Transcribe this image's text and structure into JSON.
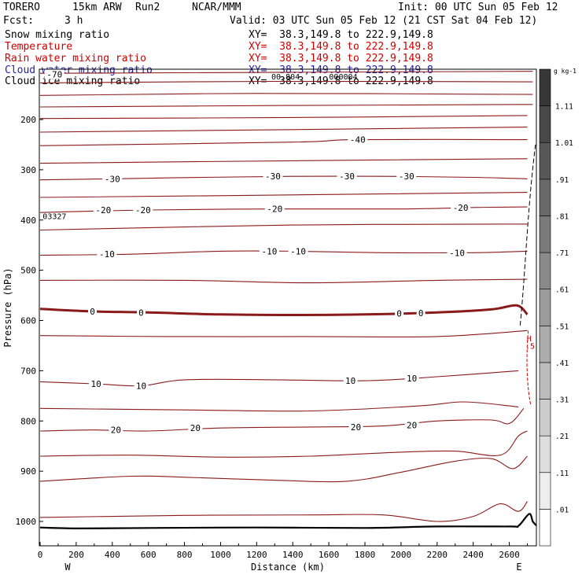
{
  "header": {
    "model": "TORERO",
    "grid": "15km ARW",
    "run": "Run2",
    "org": "NCAR/MMM",
    "init": "Init: 00 UTC Sun 05 Feb 12",
    "fcst_label": "Fcst:",
    "fcst_value": "3 h",
    "valid": "Valid: 03 UTC Sun 05 Feb 12 (21 CST Sat 04 Feb 12)"
  },
  "fields": [
    {
      "name": "Snow mixing ratio",
      "xy": "XY=  38.3,149.8 to 222.9,149.8",
      "color": "#000000"
    },
    {
      "name": "Temperature",
      "xy": "XY=  38.3,149.8 to 222.9,149.8",
      "color": "#cc0000"
    },
    {
      "name": "Rain water mixing ratio",
      "xy": "XY=  38.3,149.8 to 222.9,149.8",
      "color": "#cc0000"
    },
    {
      "name": "Cloud water mixing ratio",
      "xy": "XY=  38.3,149.8 to 222.9,149.8",
      "color": "#2222aa"
    },
    {
      "name": "Cloud ice mixing ratio",
      "xy": "XY=  38.3,149.8 to 222.9,149.8",
      "color": "#000000"
    }
  ],
  "chart_data": {
    "type": "contour-cross-section",
    "xlabel": "Distance (km)",
    "ylabel": "Pressure (hPa)",
    "xlim": [
      0,
      2750
    ],
    "ylim": [
      1050,
      100
    ],
    "x_ticks": [
      "0",
      "200",
      "400",
      "600",
      "800",
      "1000",
      "1200",
      "1400",
      "1600",
      "1800",
      "2000",
      "2200",
      "2400",
      "2600"
    ],
    "y_ticks": [
      "200",
      "300",
      "400",
      "500",
      "600",
      "700",
      "800",
      "900",
      "1000"
    ],
    "x_end_labels": {
      "west": "W",
      "east": "E"
    },
    "temperature_contours": [
      {
        "id": "t-70",
        "label": "-70",
        "pts": [
          [
            0,
            108
          ],
          [
            2730,
            104
          ]
        ]
      },
      {
        "id": "t-65",
        "label": "",
        "pts": [
          [
            0,
            127
          ],
          [
            1300,
            124
          ],
          [
            2730,
            125
          ]
        ]
      },
      {
        "id": "t-60",
        "label": "",
        "pts": [
          [
            0,
            152
          ],
          [
            1200,
            148
          ],
          [
            2730,
            150
          ]
        ]
      },
      {
        "id": "t-55",
        "label": "",
        "pts": [
          [
            0,
            175
          ],
          [
            1400,
            172
          ],
          [
            2730,
            170
          ]
        ]
      },
      {
        "id": "t-50",
        "label": "",
        "pts": [
          [
            0,
            198
          ],
          [
            1400,
            196
          ],
          [
            2700,
            192
          ]
        ]
      },
      {
        "id": "t-45",
        "label": "",
        "pts": [
          [
            0,
            225
          ],
          [
            1400,
            220
          ],
          [
            2700,
            215
          ]
        ]
      },
      {
        "id": "t-40",
        "label": "-40",
        "pts": [
          [
            0,
            252
          ],
          [
            1400,
            245
          ],
          [
            1750,
            240
          ],
          [
            2700,
            240
          ]
        ]
      },
      {
        "id": "t-35",
        "label": "",
        "pts": [
          [
            0,
            287
          ],
          [
            1400,
            282
          ],
          [
            2700,
            278
          ]
        ]
      },
      {
        "id": "t-30",
        "label": "-30",
        "pts": [
          [
            0,
            320
          ],
          [
            400,
            318
          ],
          [
            900,
            315
          ],
          [
            1400,
            313
          ],
          [
            1900,
            313
          ],
          [
            2400,
            315
          ],
          [
            2700,
            318
          ]
        ]
      },
      {
        "id": "t-25",
        "label": "",
        "pts": [
          [
            0,
            355
          ],
          [
            1400,
            350
          ],
          [
            2700,
            345
          ]
        ]
      },
      {
        "id": "t-20",
        "label": "-20",
        "pts": [
          [
            0,
            385
          ],
          [
            600,
            380
          ],
          [
            1300,
            378
          ],
          [
            2000,
            378
          ],
          [
            2400,
            375
          ],
          [
            2700,
            374
          ]
        ]
      },
      {
        "id": "t-15",
        "label": "",
        "pts": [
          [
            0,
            420
          ],
          [
            1400,
            410
          ],
          [
            2700,
            408
          ]
        ]
      },
      {
        "id": "t-10",
        "label": "-10",
        "pts": [
          [
            0,
            470
          ],
          [
            500,
            468
          ],
          [
            1000,
            462
          ],
          [
            1400,
            462
          ],
          [
            1900,
            465
          ],
          [
            2400,
            465
          ],
          [
            2700,
            462
          ]
        ]
      },
      {
        "id": "t-5",
        "label": "",
        "pts": [
          [
            0,
            520
          ],
          [
            800,
            520
          ],
          [
            1500,
            525
          ],
          [
            2200,
            520
          ],
          [
            2700,
            518
          ]
        ]
      },
      {
        "id": "t0",
        "label": "0",
        "pts": [
          [
            0,
            577
          ],
          [
            300,
            582
          ],
          [
            600,
            584
          ],
          [
            1000,
            588
          ],
          [
            1400,
            589
          ],
          [
            1800,
            588
          ],
          [
            2200,
            584
          ],
          [
            2500,
            578
          ],
          [
            2640,
            570
          ],
          [
            2700,
            588
          ]
        ]
      },
      {
        "id": "t5",
        "label": "",
        "pts": [
          [
            0,
            630
          ],
          [
            700,
            632
          ],
          [
            1500,
            632
          ],
          [
            2200,
            632
          ],
          [
            2700,
            620
          ]
        ]
      },
      {
        "id": "t10",
        "label": "10",
        "pts": [
          [
            0,
            722
          ],
          [
            300,
            726
          ],
          [
            560,
            730
          ],
          [
            800,
            718
          ],
          [
            1300,
            718
          ],
          [
            1800,
            720
          ],
          [
            2200,
            712
          ],
          [
            2650,
            700
          ]
        ]
      },
      {
        "id": "t15",
        "label": "",
        "pts": [
          [
            0,
            775
          ],
          [
            800,
            778
          ],
          [
            1500,
            780
          ],
          [
            2100,
            770
          ],
          [
            2350,
            762
          ],
          [
            2650,
            772
          ]
        ]
      },
      {
        "id": "t20",
        "label": "20",
        "pts": [
          [
            0,
            820
          ],
          [
            300,
            818
          ],
          [
            600,
            820
          ],
          [
            1000,
            814
          ],
          [
            1500,
            812
          ],
          [
            1900,
            810
          ],
          [
            2200,
            800
          ],
          [
            2500,
            798
          ],
          [
            2600,
            805
          ],
          [
            2680,
            775
          ]
        ]
      },
      {
        "id": "t25",
        "label": "",
        "pts": [
          [
            0,
            870
          ],
          [
            500,
            868
          ],
          [
            1000,
            872
          ],
          [
            1500,
            870
          ],
          [
            2000,
            862
          ],
          [
            2300,
            860
          ],
          [
            2550,
            868
          ],
          [
            2650,
            830
          ],
          [
            2700,
            820
          ]
        ]
      },
      {
        "id": "t30",
        "label": "",
        "pts": [
          [
            0,
            920
          ],
          [
            500,
            910
          ],
          [
            800,
            912
          ],
          [
            1300,
            918
          ],
          [
            1700,
            920
          ],
          [
            2000,
            902
          ],
          [
            2300,
            880
          ],
          [
            2500,
            875
          ],
          [
            2620,
            895
          ],
          [
            2700,
            870
          ]
        ]
      },
      {
        "id": "t35",
        "label": "",
        "pts": [
          [
            0,
            992
          ],
          [
            800,
            988
          ],
          [
            1500,
            987
          ],
          [
            1900,
            987
          ],
          [
            2200,
            1000
          ],
          [
            2400,
            990
          ],
          [
            2550,
            965
          ],
          [
            2650,
            980
          ],
          [
            2700,
            960
          ]
        ]
      }
    ],
    "contour_labels": [
      {
        "text": "-70",
        "x": 80,
        "p": 110
      },
      {
        "text": "-40",
        "x": 1760,
        "p": 240
      },
      {
        "text": "-30",
        "x": 400,
        "p": 318
      },
      {
        "text": "-30",
        "x": 1290,
        "p": 313
      },
      {
        "text": "-30",
        "x": 1700,
        "p": 313
      },
      {
        "text": "-30",
        "x": 2030,
        "p": 313
      },
      {
        "text": "-20",
        "x": 350,
        "p": 380
      },
      {
        "text": "-20",
        "x": 570,
        "p": 380
      },
      {
        "text": "-20",
        "x": 1300,
        "p": 378
      },
      {
        "text": "-20",
        "x": 2330,
        "p": 375
      },
      {
        "text": "-10",
        "x": 370,
        "p": 468
      },
      {
        "text": "-10",
        "x": 1270,
        "p": 462
      },
      {
        "text": "-10",
        "x": 1430,
        "p": 462
      },
      {
        "text": "-10",
        "x": 2310,
        "p": 465
      },
      {
        "text": "0",
        "x": 290,
        "p": 582
      },
      {
        "text": "0",
        "x": 560,
        "p": 584
      },
      {
        "text": "0",
        "x": 1990,
        "p": 586
      },
      {
        "text": "0",
        "x": 2110,
        "p": 585
      },
      {
        "text": "10",
        "x": 310,
        "p": 726
      },
      {
        "text": "10",
        "x": 560,
        "p": 730
      },
      {
        "text": "10",
        "x": 1720,
        "p": 720
      },
      {
        "text": "10",
        "x": 2060,
        "p": 715
      },
      {
        "text": "20",
        "x": 420,
        "p": 818
      },
      {
        "text": "20",
        "x": 860,
        "p": 814
      },
      {
        "text": "20",
        "x": 1750,
        "p": 812
      },
      {
        "text": "20",
        "x": 2060,
        "p": 808
      }
    ],
    "terrain": [
      [
        0,
        1012
      ],
      [
        220,
        1014
      ],
      [
        600,
        1013
      ],
      [
        1200,
        1012
      ],
      [
        1800,
        1013
      ],
      [
        2200,
        1010
      ],
      [
        2600,
        1010
      ],
      [
        2650,
        1009
      ],
      [
        2710,
        985
      ],
      [
        2730,
        1000
      ],
      [
        2750,
        1008
      ]
    ],
    "extra_labels": [
      {
        "text": "03327",
        "x": 80,
        "p": 392
      },
      {
        "text": "00.804",
        "x": 1360,
        "p": 114
      },
      {
        "text": "000004",
        "x": 1680,
        "p": 114
      },
      {
        "text": "H",
        "x": 2710,
        "p": 635
      },
      {
        "text": ".5",
        "x": 2715,
        "p": 650
      }
    ],
    "colorbar": {
      "unit": "g kg-1",
      "ticks": [
        ".01",
        ".11",
        ".21",
        ".31",
        ".41",
        ".51",
        ".61",
        ".71",
        ".81",
        ".91",
        "1.01",
        "1.11"
      ]
    }
  }
}
